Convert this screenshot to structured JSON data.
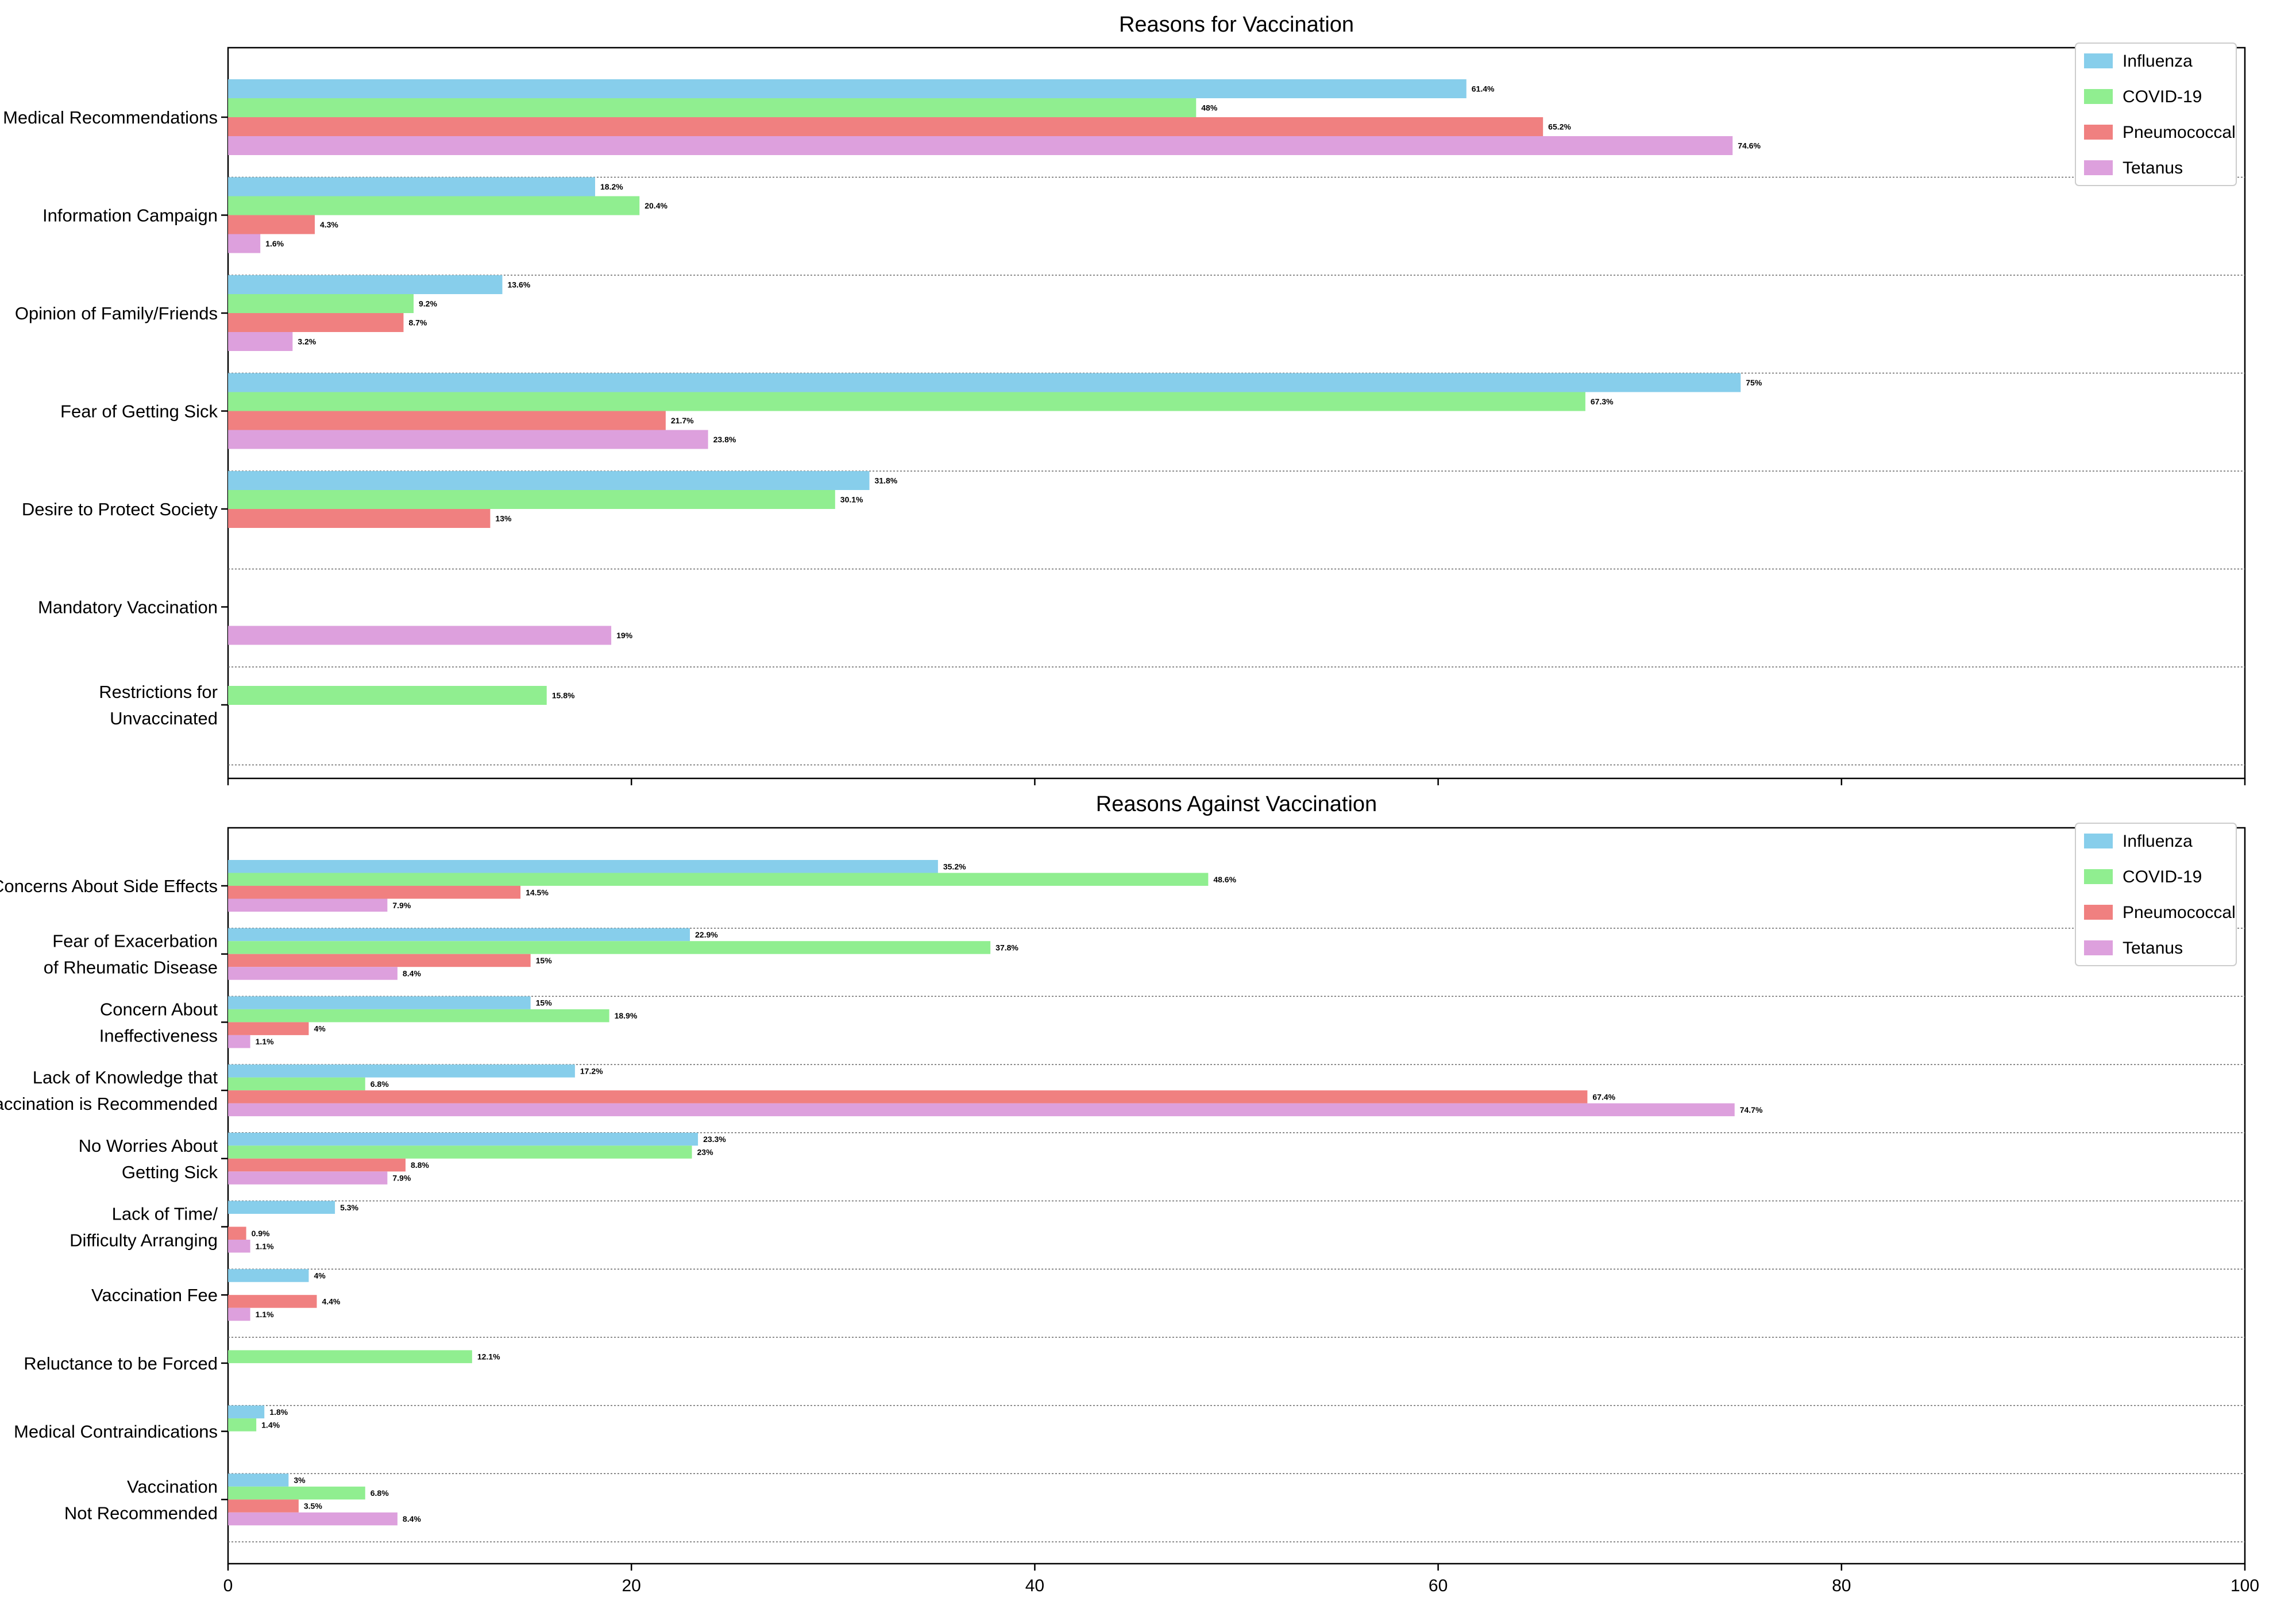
{
  "chart_data": [
    {
      "type": "bar",
      "orientation": "horizontal",
      "title": "Reasons for Vaccination",
      "categories": [
        "Medical Recommendations",
        "Information Campaign",
        "Opinion of Family/Friends",
        "Fear of Getting Sick",
        "Desire to Protect Society",
        "Mandatory Vaccination",
        "Restrictions for Unvaccinated"
      ],
      "category_lines": [
        [
          "Medical Recommendations"
        ],
        [
          "Information Campaign"
        ],
        [
          "Opinion of Family/Friends"
        ],
        [
          "Fear of Getting Sick"
        ],
        [
          "Desire to Protect Society"
        ],
        [
          "Mandatory Vaccination"
        ],
        [
          "Restrictions for",
          "Unvaccinated"
        ]
      ],
      "series": [
        {
          "name": "Influenza",
          "color": "#87ceeb",
          "values": [
            61.4,
            18.2,
            13.6,
            75,
            31.8,
            null,
            null
          ],
          "labels": [
            "61.4%",
            "18.2%",
            "13.6%",
            "75%",
            "31.8%",
            null,
            null
          ]
        },
        {
          "name": "COVID-19",
          "color": "#90ee90",
          "values": [
            48,
            20.4,
            9.2,
            67.3,
            30.1,
            null,
            15.8
          ],
          "labels": [
            "48%",
            "20.4%",
            "9.2%",
            "67.3%",
            "30.1%",
            null,
            "15.8%"
          ]
        },
        {
          "name": "Pneumococcal",
          "color": "#f08080",
          "values": [
            65.2,
            4.3,
            8.7,
            21.7,
            13,
            null,
            null
          ],
          "labels": [
            "65.2%",
            "4.3%",
            "8.7%",
            "21.7%",
            "13%",
            null,
            null
          ]
        },
        {
          "name": "Tetanus",
          "color": "#dda0dd",
          "values": [
            74.6,
            1.6,
            3.2,
            23.8,
            null,
            19,
            null
          ],
          "labels": [
            "74.6%",
            "1.6%",
            "3.2%",
            "23.8%",
            null,
            "19%",
            null
          ]
        }
      ],
      "xlim": [
        0,
        100
      ],
      "xticks": [
        0,
        20,
        40,
        60,
        80,
        100
      ],
      "show_tick_labels": false,
      "legend_position": "top-right"
    },
    {
      "type": "bar",
      "orientation": "horizontal",
      "title": "Reasons Against Vaccination",
      "categories": [
        "Concerns About Side Effects",
        "Fear of Exacerbation of Rheumatic Disease",
        "Concern About Ineffectiveness",
        "Lack of Knowledge that Vaccination is Recommended",
        "No Worries About Getting Sick",
        "Lack of Time/ Difficulty Arranging",
        "Vaccination Fee",
        "Reluctance to be Forced",
        "Medical Contraindications",
        "Vaccination Not Recommended"
      ],
      "category_lines": [
        [
          "Concerns About Side Effects"
        ],
        [
          "Fear of Exacerbation",
          "of Rheumatic Disease"
        ],
        [
          "Concern About",
          "Ineffectiveness"
        ],
        [
          "Lack of Knowledge that",
          "'accination is Recommended"
        ],
        [
          "No Worries About",
          "Getting Sick"
        ],
        [
          "Lack of Time/",
          "Difficulty Arranging"
        ],
        [
          "Vaccination Fee"
        ],
        [
          "Reluctance to be Forced"
        ],
        [
          "Medical Contraindications"
        ],
        [
          "Vaccination",
          "Not Recommended"
        ]
      ],
      "series": [
        {
          "name": "Influenza",
          "color": "#87ceeb",
          "values": [
            35.2,
            22.9,
            15,
            17.2,
            23.3,
            5.3,
            4,
            null,
            1.8,
            3
          ],
          "labels": [
            "35.2%",
            "22.9%",
            "15%",
            "17.2%",
            "23.3%",
            "5.3%",
            "4%",
            null,
            "1.8%",
            "3%"
          ]
        },
        {
          "name": "COVID-19",
          "color": "#90ee90",
          "values": [
            48.6,
            37.8,
            18.9,
            6.8,
            23,
            null,
            null,
            12.1,
            1.4,
            6.8
          ],
          "labels": [
            "48.6%",
            "37.8%",
            "18.9%",
            "6.8%",
            "23%",
            null,
            null,
            "12.1%",
            "1.4%",
            "6.8%"
          ]
        },
        {
          "name": "Pneumococcal",
          "color": "#f08080",
          "values": [
            14.5,
            15,
            4,
            67.4,
            8.8,
            0.9,
            4.4,
            null,
            null,
            3.5
          ],
          "labels": [
            "14.5%",
            "15%",
            "4%",
            "67.4%",
            "8.8%",
            "0.9%",
            "4.4%",
            null,
            null,
            "3.5%"
          ]
        },
        {
          "name": "Tetanus",
          "color": "#dda0dd",
          "values": [
            7.9,
            8.4,
            1.1,
            74.7,
            7.9,
            1.1,
            1.1,
            null,
            null,
            8.4
          ],
          "labels": [
            "7.9%",
            "8.4%",
            "1.1%",
            "74.7%",
            "7.9%",
            "1.1%",
            "1.1%",
            null,
            null,
            "8.4%"
          ]
        }
      ],
      "xlim": [
        0,
        100
      ],
      "xticks": [
        0,
        20,
        40,
        60,
        80,
        100
      ],
      "show_tick_labels": true,
      "legend_position": "top-right"
    }
  ]
}
